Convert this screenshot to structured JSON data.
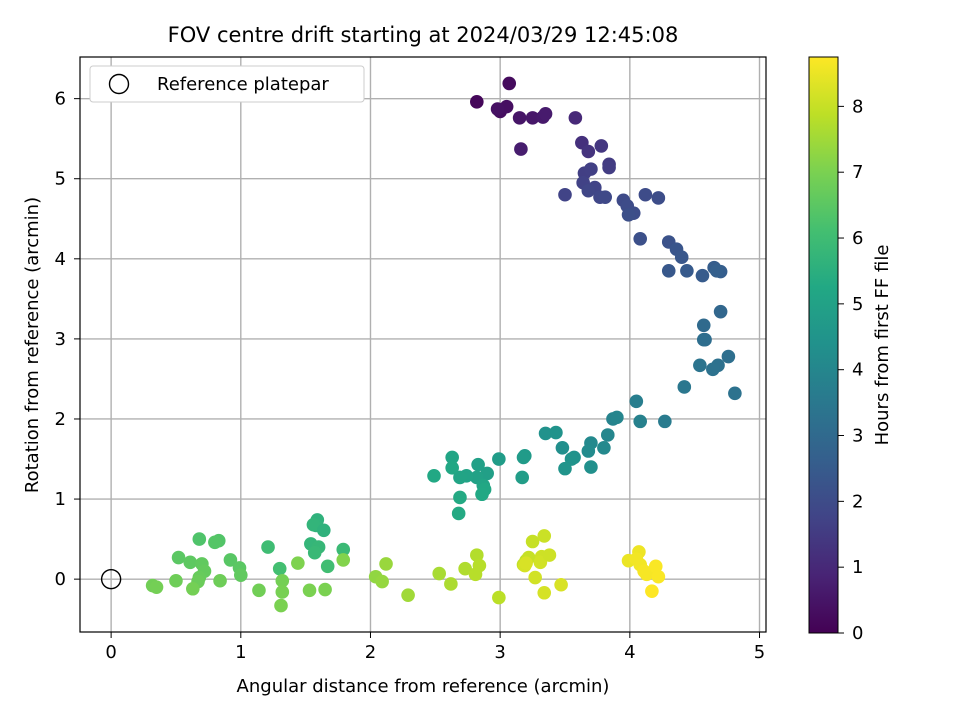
{
  "chart_data": {
    "type": "scatter",
    "title": "FOV centre drift starting at 2024/03/29 12:45:08",
    "xlabel": "Angular distance from reference (arcmin)",
    "ylabel": "Rotation from reference (arcmin)",
    "xlim": [
      -0.24,
      5.05
    ],
    "ylim": [
      -0.66,
      6.52
    ],
    "xticks": [
      0,
      1,
      2,
      3,
      4,
      5
    ],
    "yticks": [
      0,
      1,
      2,
      3,
      4,
      5,
      6
    ],
    "grid": true,
    "legend": {
      "placement": "top-left",
      "entries": [
        "Reference platepar"
      ]
    },
    "reference_point": {
      "x": 0,
      "y": 0,
      "marker": "open-circle"
    },
    "colorbar": {
      "label": "Hours from first FF file",
      "min": 0,
      "max": 8.75,
      "ticks": [
        0,
        1,
        2,
        3,
        4,
        5,
        6,
        7,
        8
      ],
      "colormap": "viridis"
    },
    "points": [
      {
        "x": 2.82,
        "y": 5.96,
        "h": 0.15
      },
      {
        "x": 3.07,
        "y": 6.19,
        "h": 0.25
      },
      {
        "x": 3.0,
        "y": 5.84,
        "h": 0.3
      },
      {
        "x": 3.05,
        "y": 5.9,
        "h": 0.35
      },
      {
        "x": 2.98,
        "y": 5.87,
        "h": 0.4
      },
      {
        "x": 3.15,
        "y": 5.76,
        "h": 0.5
      },
      {
        "x": 3.25,
        "y": 5.76,
        "h": 0.55
      },
      {
        "x": 3.33,
        "y": 5.77,
        "h": 0.6
      },
      {
        "x": 3.35,
        "y": 5.81,
        "h": 0.65
      },
      {
        "x": 3.16,
        "y": 5.37,
        "h": 0.7
      },
      {
        "x": 3.58,
        "y": 5.76,
        "h": 1.0
      },
      {
        "x": 3.63,
        "y": 5.45,
        "h": 1.2
      },
      {
        "x": 3.68,
        "y": 5.34,
        "h": 1.3
      },
      {
        "x": 3.78,
        "y": 5.41,
        "h": 1.4
      },
      {
        "x": 3.84,
        "y": 5.18,
        "h": 1.5
      },
      {
        "x": 3.84,
        "y": 5.14,
        "h": 1.55
      },
      {
        "x": 3.65,
        "y": 5.07,
        "h": 1.6
      },
      {
        "x": 3.7,
        "y": 5.12,
        "h": 1.65
      },
      {
        "x": 3.64,
        "y": 4.95,
        "h": 1.7
      },
      {
        "x": 3.73,
        "y": 4.89,
        "h": 1.75
      },
      {
        "x": 3.68,
        "y": 4.85,
        "h": 1.8
      },
      {
        "x": 3.77,
        "y": 4.77,
        "h": 1.85
      },
      {
        "x": 3.81,
        "y": 4.77,
        "h": 1.9
      },
      {
        "x": 3.5,
        "y": 4.8,
        "h": 1.75
      },
      {
        "x": 3.95,
        "y": 4.73,
        "h": 1.95
      },
      {
        "x": 3.98,
        "y": 4.66,
        "h": 2.0
      },
      {
        "x": 4.03,
        "y": 4.57,
        "h": 2.05
      },
      {
        "x": 3.99,
        "y": 4.55,
        "h": 2.1
      },
      {
        "x": 4.12,
        "y": 4.8,
        "h": 2.0
      },
      {
        "x": 4.22,
        "y": 4.76,
        "h": 2.05
      },
      {
        "x": 4.08,
        "y": 4.25,
        "h": 2.15
      },
      {
        "x": 4.3,
        "y": 4.21,
        "h": 2.2
      },
      {
        "x": 4.36,
        "y": 4.12,
        "h": 2.3
      },
      {
        "x": 4.4,
        "y": 4.02,
        "h": 2.35
      },
      {
        "x": 4.3,
        "y": 3.85,
        "h": 2.4
      },
      {
        "x": 4.44,
        "y": 3.85,
        "h": 2.45
      },
      {
        "x": 4.56,
        "y": 3.79,
        "h": 2.5
      },
      {
        "x": 4.65,
        "y": 3.89,
        "h": 2.55
      },
      {
        "x": 4.7,
        "y": 3.84,
        "h": 2.6
      },
      {
        "x": 4.67,
        "y": 3.85,
        "h": 2.65
      },
      {
        "x": 4.7,
        "y": 3.34,
        "h": 2.9
      },
      {
        "x": 4.57,
        "y": 3.17,
        "h": 3.0
      },
      {
        "x": 4.58,
        "y": 2.99,
        "h": 3.1
      },
      {
        "x": 4.57,
        "y": 2.99,
        "h": 3.15
      },
      {
        "x": 4.76,
        "y": 2.78,
        "h": 3.2
      },
      {
        "x": 4.68,
        "y": 2.67,
        "h": 3.25
      },
      {
        "x": 4.64,
        "y": 2.62,
        "h": 3.3
      },
      {
        "x": 4.54,
        "y": 2.67,
        "h": 3.35
      },
      {
        "x": 4.81,
        "y": 2.32,
        "h": 3.3
      },
      {
        "x": 4.42,
        "y": 2.4,
        "h": 3.45
      },
      {
        "x": 4.05,
        "y": 2.22,
        "h": 3.7
      },
      {
        "x": 4.27,
        "y": 1.97,
        "h": 3.6
      },
      {
        "x": 4.08,
        "y": 1.97,
        "h": 3.8
      },
      {
        "x": 3.87,
        "y": 2.0,
        "h": 3.9
      },
      {
        "x": 3.9,
        "y": 2.02,
        "h": 3.95
      },
      {
        "x": 3.83,
        "y": 1.8,
        "h": 4.0
      },
      {
        "x": 3.7,
        "y": 1.7,
        "h": 4.1
      },
      {
        "x": 3.68,
        "y": 1.6,
        "h": 4.15
      },
      {
        "x": 3.8,
        "y": 1.64,
        "h": 4.1
      },
      {
        "x": 3.48,
        "y": 1.64,
        "h": 4.3
      },
      {
        "x": 3.35,
        "y": 1.82,
        "h": 4.4
      },
      {
        "x": 3.43,
        "y": 1.83,
        "h": 4.45
      },
      {
        "x": 3.57,
        "y": 1.52,
        "h": 4.4
      },
      {
        "x": 3.55,
        "y": 1.5,
        "h": 4.45
      },
      {
        "x": 3.7,
        "y": 1.4,
        "h": 4.35
      },
      {
        "x": 3.5,
        "y": 1.38,
        "h": 4.5
      },
      {
        "x": 3.19,
        "y": 1.54,
        "h": 4.7
      },
      {
        "x": 3.18,
        "y": 1.52,
        "h": 4.75
      },
      {
        "x": 2.99,
        "y": 1.5,
        "h": 4.8
      },
      {
        "x": 3.17,
        "y": 1.27,
        "h": 4.85
      },
      {
        "x": 2.9,
        "y": 1.32,
        "h": 4.9
      },
      {
        "x": 2.83,
        "y": 1.43,
        "h": 4.95
      },
      {
        "x": 2.82,
        "y": 1.27,
        "h": 5.0
      },
      {
        "x": 2.74,
        "y": 1.29,
        "h": 5.05
      },
      {
        "x": 2.69,
        "y": 1.27,
        "h": 5.1
      },
      {
        "x": 2.63,
        "y": 1.52,
        "h": 5.15
      },
      {
        "x": 2.63,
        "y": 1.39,
        "h": 5.2
      },
      {
        "x": 2.49,
        "y": 1.29,
        "h": 5.25
      },
      {
        "x": 2.87,
        "y": 1.17,
        "h": 5.1
      },
      {
        "x": 2.88,
        "y": 1.12,
        "h": 5.2
      },
      {
        "x": 2.86,
        "y": 1.06,
        "h": 5.25
      },
      {
        "x": 2.69,
        "y": 1.02,
        "h": 5.3
      },
      {
        "x": 2.68,
        "y": 0.82,
        "h": 5.3
      },
      {
        "x": 1.59,
        "y": 0.74,
        "h": 5.6
      },
      {
        "x": 1.58,
        "y": 0.67,
        "h": 5.65
      },
      {
        "x": 1.56,
        "y": 0.68,
        "h": 5.7
      },
      {
        "x": 1.64,
        "y": 0.61,
        "h": 5.6
      },
      {
        "x": 1.54,
        "y": 0.44,
        "h": 5.75
      },
      {
        "x": 1.6,
        "y": 0.4,
        "h": 5.8
      },
      {
        "x": 1.57,
        "y": 0.33,
        "h": 5.85
      },
      {
        "x": 1.79,
        "y": 0.37,
        "h": 5.9
      },
      {
        "x": 1.21,
        "y": 0.4,
        "h": 6.0
      },
      {
        "x": 1.67,
        "y": 0.16,
        "h": 6.05
      },
      {
        "x": 1.3,
        "y": 0.13,
        "h": 6.1
      },
      {
        "x": 0.68,
        "y": 0.5,
        "h": 6.3
      },
      {
        "x": 0.83,
        "y": 0.48,
        "h": 6.35
      },
      {
        "x": 0.8,
        "y": 0.46,
        "h": 6.4
      },
      {
        "x": 0.92,
        "y": 0.24,
        "h": 6.45
      },
      {
        "x": 0.52,
        "y": 0.27,
        "h": 6.5
      },
      {
        "x": 0.61,
        "y": 0.21,
        "h": 6.55
      },
      {
        "x": 0.7,
        "y": 0.19,
        "h": 6.6
      },
      {
        "x": 0.72,
        "y": 0.1,
        "h": 6.65
      },
      {
        "x": 0.99,
        "y": 0.14,
        "h": 6.5
      },
      {
        "x": 1.0,
        "y": 0.05,
        "h": 6.6
      },
      {
        "x": 0.68,
        "y": 0.02,
        "h": 6.7
      },
      {
        "x": 0.67,
        "y": -0.03,
        "h": 6.75
      },
      {
        "x": 0.84,
        "y": -0.02,
        "h": 6.8
      },
      {
        "x": 0.5,
        "y": -0.02,
        "h": 6.8
      },
      {
        "x": 0.32,
        "y": -0.08,
        "h": 6.85
      },
      {
        "x": 0.35,
        "y": -0.1,
        "h": 6.9
      },
      {
        "x": 0.63,
        "y": -0.12,
        "h": 6.9
      },
      {
        "x": 1.14,
        "y": -0.14,
        "h": 6.85
      },
      {
        "x": 1.32,
        "y": -0.02,
        "h": 6.9
      },
      {
        "x": 1.32,
        "y": -0.16,
        "h": 6.95
      },
      {
        "x": 1.31,
        "y": -0.33,
        "h": 7.0
      },
      {
        "x": 1.53,
        "y": -0.14,
        "h": 7.0
      },
      {
        "x": 1.65,
        "y": -0.13,
        "h": 7.0
      },
      {
        "x": 1.44,
        "y": 0.2,
        "h": 7.05
      },
      {
        "x": 1.79,
        "y": 0.24,
        "h": 7.1
      },
      {
        "x": 2.04,
        "y": 0.03,
        "h": 7.3
      },
      {
        "x": 2.09,
        "y": -0.03,
        "h": 7.35
      },
      {
        "x": 2.12,
        "y": 0.19,
        "h": 7.4
      },
      {
        "x": 2.29,
        "y": -0.2,
        "h": 7.5
      },
      {
        "x": 2.53,
        "y": 0.07,
        "h": 7.6
      },
      {
        "x": 2.62,
        "y": -0.06,
        "h": 7.65
      },
      {
        "x": 2.73,
        "y": 0.13,
        "h": 7.7
      },
      {
        "x": 2.82,
        "y": 0.3,
        "h": 7.75
      },
      {
        "x": 2.84,
        "y": 0.17,
        "h": 7.8
      },
      {
        "x": 2.81,
        "y": 0.06,
        "h": 7.8
      },
      {
        "x": 2.99,
        "y": -0.23,
        "h": 7.85
      },
      {
        "x": 3.2,
        "y": 0.23,
        "h": 7.9
      },
      {
        "x": 3.18,
        "y": 0.18,
        "h": 7.95
      },
      {
        "x": 3.22,
        "y": 0.27,
        "h": 8.0
      },
      {
        "x": 3.25,
        "y": 0.47,
        "h": 8.0
      },
      {
        "x": 3.34,
        "y": 0.54,
        "h": 8.05
      },
      {
        "x": 3.32,
        "y": 0.28,
        "h": 8.1
      },
      {
        "x": 3.31,
        "y": 0.21,
        "h": 8.15
      },
      {
        "x": 3.38,
        "y": 0.3,
        "h": 8.1
      },
      {
        "x": 3.27,
        "y": 0.02,
        "h": 8.15
      },
      {
        "x": 3.34,
        "y": -0.17,
        "h": 8.2
      },
      {
        "x": 3.47,
        "y": -0.07,
        "h": 8.25
      },
      {
        "x": 3.19,
        "y": 0.17,
        "h": 8.2
      },
      {
        "x": 3.2,
        "y": 0.2,
        "h": 8.25
      },
      {
        "x": 3.99,
        "y": 0.23,
        "h": 8.5
      },
      {
        "x": 4.07,
        "y": 0.34,
        "h": 8.55
      },
      {
        "x": 4.05,
        "y": 0.25,
        "h": 8.6
      },
      {
        "x": 4.08,
        "y": 0.18,
        "h": 8.6
      },
      {
        "x": 4.11,
        "y": 0.1,
        "h": 8.65
      },
      {
        "x": 4.13,
        "y": 0.06,
        "h": 8.65
      },
      {
        "x": 4.2,
        "y": 0.16,
        "h": 8.7
      },
      {
        "x": 4.22,
        "y": 0.03,
        "h": 8.7
      },
      {
        "x": 4.17,
        "y": -0.15,
        "h": 8.75
      }
    ]
  }
}
